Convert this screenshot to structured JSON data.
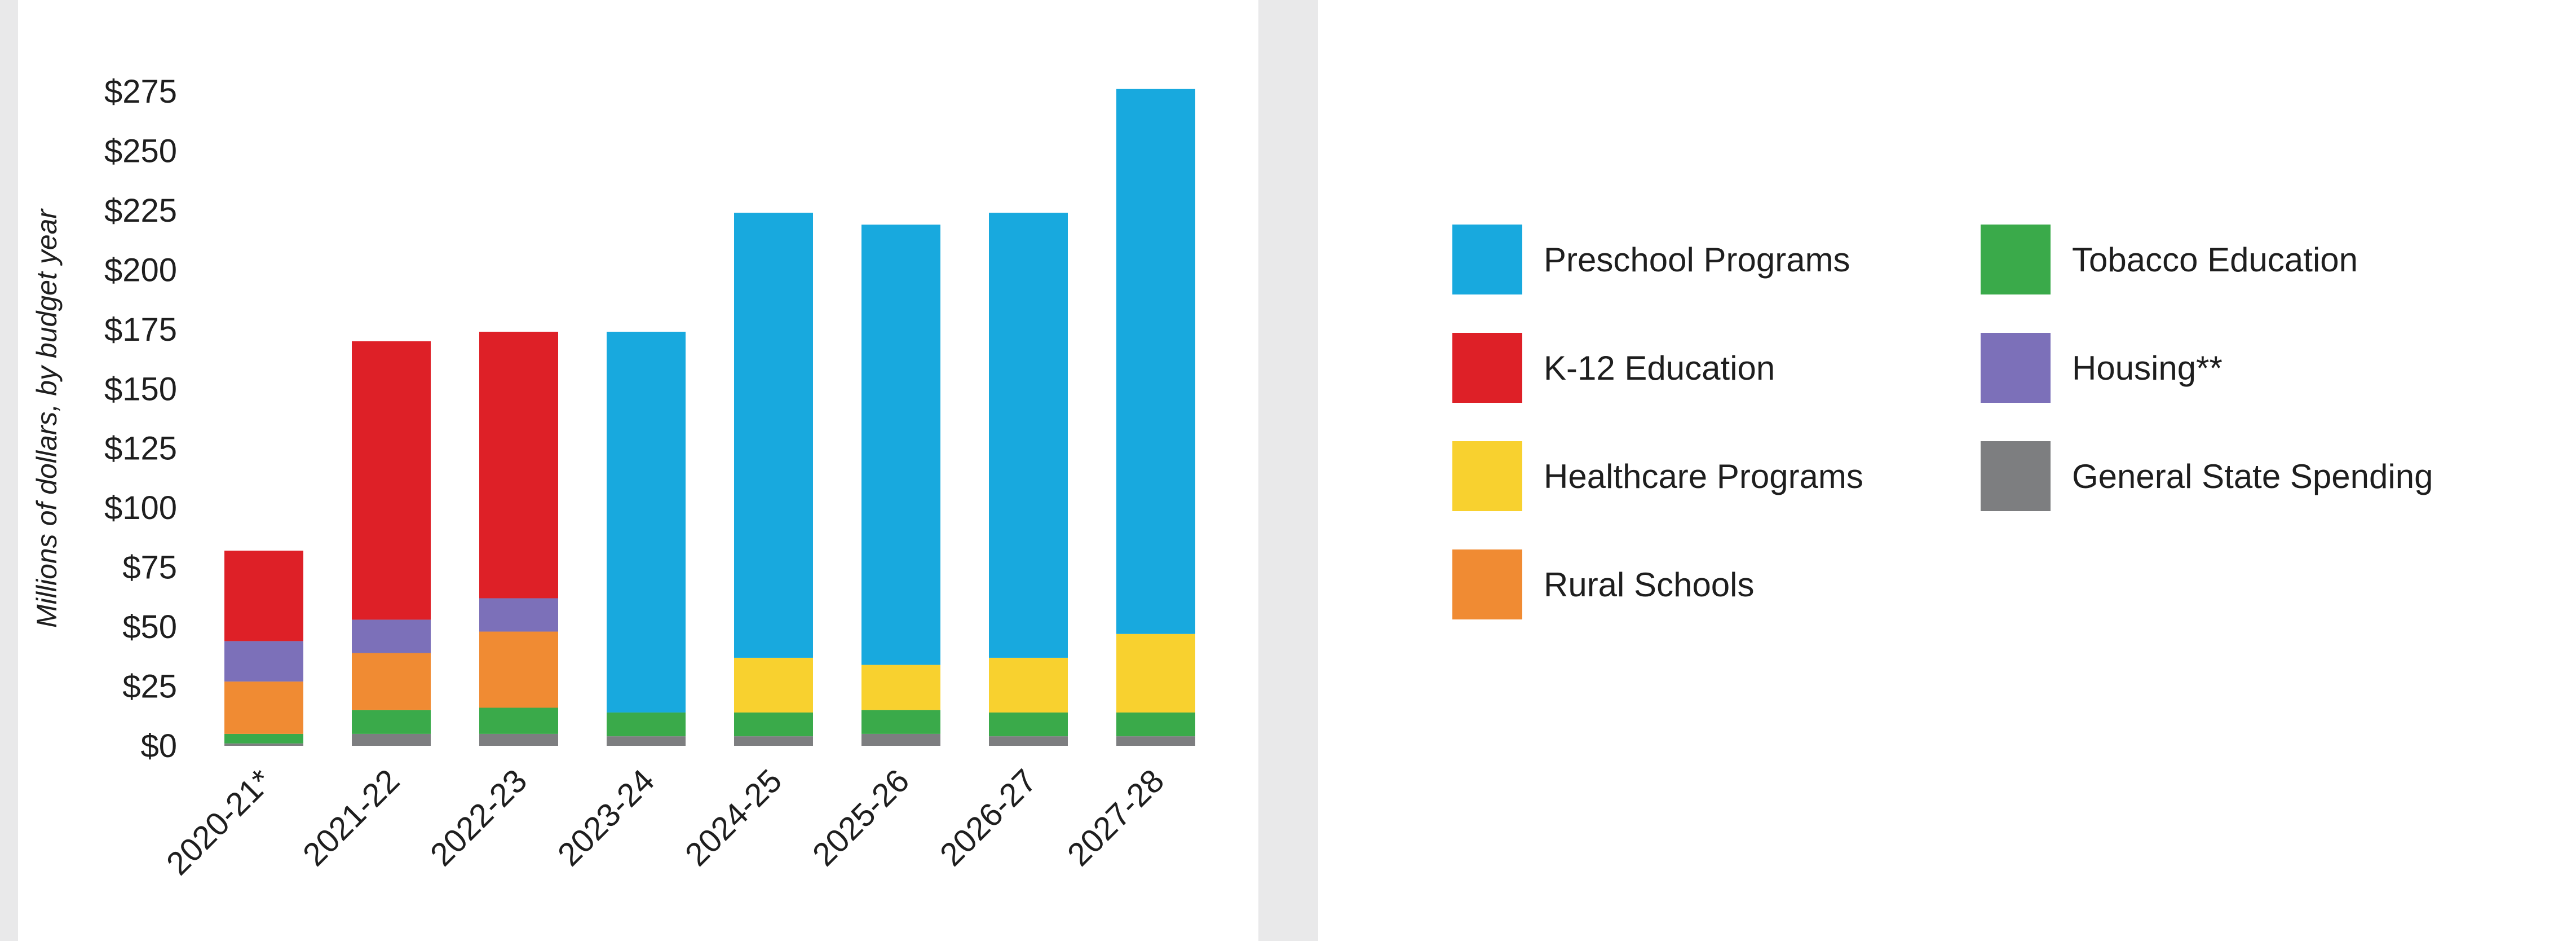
{
  "chart_data": {
    "type": "bar",
    "stacked": true,
    "ylabel": "Millions of dollars, by budget year",
    "ylim": [
      0,
      275
    ],
    "yticks": [
      0,
      25,
      50,
      75,
      100,
      125,
      150,
      175,
      200,
      225,
      250,
      275
    ],
    "ytick_labels": [
      "$0",
      "$25",
      "$50",
      "$75",
      "$100",
      "$125",
      "$150",
      "$175",
      "$200",
      "$225",
      "$250",
      "$275"
    ],
    "categories": [
      "2020-21*",
      "2021-22",
      "2022-23",
      "2023-24",
      "2024-25",
      "2025-26",
      "2026-27",
      "2027-28"
    ],
    "series": [
      {
        "name": "General State Spending",
        "color": "#7d7e80",
        "values": [
          1,
          5,
          5,
          4,
          4,
          5,
          4,
          4
        ]
      },
      {
        "name": "Tobacco Education",
        "color": "#3aaa4a",
        "values": [
          4,
          10,
          11,
          10,
          10,
          10,
          10,
          10
        ]
      },
      {
        "name": "Rural Schools",
        "color": "#f08b33",
        "values": [
          22,
          24,
          32,
          0,
          0,
          0,
          0,
          0
        ]
      },
      {
        "name": "Healthcare Programs",
        "color": "#f8d12f",
        "values": [
          0,
          0,
          0,
          0,
          23,
          19,
          23,
          33
        ]
      },
      {
        "name": "Housing**",
        "color": "#7c70b9",
        "values": [
          17,
          14,
          14,
          0,
          0,
          0,
          0,
          0
        ]
      },
      {
        "name": "K-12 Education",
        "color": "#de2027",
        "values": [
          38,
          117,
          112,
          0,
          0,
          0,
          0,
          0
        ]
      },
      {
        "name": "Preschool Programs",
        "color": "#18a9de",
        "values": [
          0,
          0,
          0,
          160,
          187,
          185,
          187,
          229
        ]
      }
    ],
    "legend": {
      "placement": "right",
      "order": [
        "Preschool Programs",
        "K-12 Education",
        "Healthcare Programs",
        "Rural Schools",
        "Tobacco Education",
        "Housing**",
        "General State Spending"
      ]
    }
  }
}
